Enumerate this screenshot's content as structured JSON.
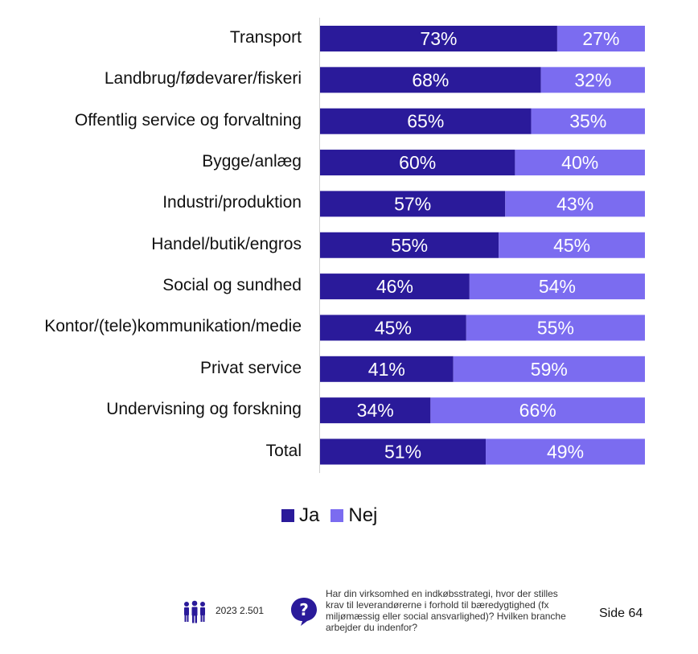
{
  "chart_data": {
    "type": "bar",
    "orientation": "horizontal",
    "stacked": true,
    "percent_stacked": true,
    "categories": [
      "Transport",
      "Landbrug/fødevarer/fiskeri",
      "Offentlig service og forvaltning",
      "Bygge/anlæg",
      "Industri/produktion",
      "Handel/butik/engros",
      "Social og sundhed",
      "Kontor/(tele)kommunikation/medie",
      "Privat service",
      "Undervisning og forskning",
      "Total"
    ],
    "series": [
      {
        "name": "Ja",
        "color": "#2a1a9a",
        "values": [
          73,
          68,
          65,
          60,
          57,
          55,
          46,
          45,
          41,
          34,
          51
        ],
        "labels": [
          "73%",
          "68%",
          "65%",
          "60%",
          "57%",
          "55%",
          "46%",
          "45%",
          "41%",
          "34%",
          "51%"
        ]
      },
      {
        "name": "Nej",
        "color": "#7b6cf0",
        "values": [
          27,
          32,
          35,
          40,
          43,
          45,
          54,
          55,
          59,
          66,
          49
        ],
        "labels": [
          "27%",
          "32%",
          "35%",
          "40%",
          "43%",
          "45%",
          "54%",
          "55%",
          "59%",
          "66%",
          "49%"
        ]
      }
    ],
    "xlim": [
      0,
      100
    ],
    "legend_position": "bottom",
    "grid": false
  },
  "footer": {
    "people_icon": "people-icon",
    "respondents": "2023 2.501",
    "question_icon": "question-mark-icon",
    "question": "Har din virksomhed en indkøbsstrategi, hvor der stilles krav til leverandørerne i forhold til bæredygtighed (fx miljømæssig eller social ansvarlighed)? Hvilken branche arbejder du indenfor?",
    "page": "Side 64"
  }
}
